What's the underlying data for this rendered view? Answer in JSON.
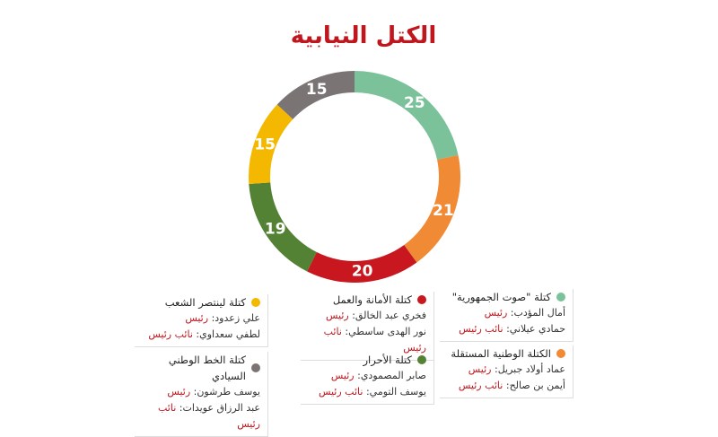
{
  "chart_data": {
    "type": "pie",
    "donut": true,
    "title": "الكتل النيابية",
    "categories": [
      "كتلة \"صوت الجمهورية\"",
      "الكتلة الوطنية المستقلة",
      "كتلة الأمانة والعمل",
      "كتلة الأحرار",
      "كتلة لينتصر الشعب",
      "كتلة الخط الوطني السيادي"
    ],
    "values": [
      25,
      21,
      20,
      19,
      15,
      15
    ],
    "colors": [
      "#7bc29a",
      "#f08a34",
      "#c8171e",
      "#548235",
      "#f5b800",
      "#7a7574"
    ]
  },
  "legend_details": [
    {
      "members": [
        {
          "name": "أمال المؤدب:",
          "role": "رئيس"
        },
        {
          "name": "حمادي عيلاني:",
          "role": "نائب رئيس"
        }
      ]
    },
    {
      "members": [
        {
          "name": "عماد أولاد جبريل:",
          "role": "رئيس"
        },
        {
          "name": "أيمن بن صالح:",
          "role": "نائب رئيس"
        }
      ]
    },
    {
      "members": [
        {
          "name": "فخري عبد الخالق:",
          "role": "رئيس"
        },
        {
          "name": "نور الهدى ساسطي:",
          "role": "نائب رئيس"
        }
      ]
    },
    {
      "members": [
        {
          "name": "صابر المصمودي:",
          "role": "رئيس"
        },
        {
          "name": "يوسف التومي:",
          "role": "نائب رئيس"
        }
      ]
    },
    {
      "members": [
        {
          "name": "علي زعدود:",
          "role": "رئيس"
        },
        {
          "name": "لطفي سعداوي:",
          "role": "نائب رئيس"
        }
      ]
    },
    {
      "members": [
        {
          "name": "يوسف طرشون:",
          "role": "رئيس"
        },
        {
          "name": "عبد الرزاق عويدات:",
          "role": "نائب رئيس"
        }
      ]
    }
  ]
}
